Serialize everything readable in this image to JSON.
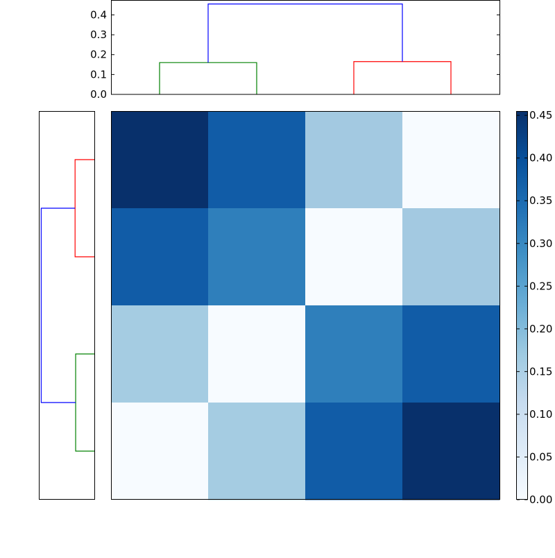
{
  "chart_data": [
    {
      "type": "dendrogram",
      "orientation": "top",
      "title": "",
      "ylabel": "",
      "ylim": [
        0.0,
        0.475
      ],
      "yticks": [
        "0.0",
        "0.1",
        "0.2",
        "0.3",
        "0.4"
      ],
      "leaves": 4,
      "links": [
        {
          "color": "#008000",
          "height": 0.16,
          "children": [
            "leaf0",
            "leaf1"
          ]
        },
        {
          "color": "#ff0000",
          "height": 0.165,
          "children": [
            "leaf2",
            "leaf3"
          ]
        },
        {
          "color": "#0000ff",
          "height": 0.455,
          "children": [
            "cluster_green",
            "cluster_red"
          ]
        }
      ]
    },
    {
      "type": "dendrogram",
      "orientation": "left",
      "leaves": 4,
      "links": [
        {
          "color": "#ff0000",
          "height": 0.165,
          "children": [
            "leaf0",
            "leaf1"
          ]
        },
        {
          "color": "#008000",
          "height": 0.16,
          "children": [
            "leaf2",
            "leaf3"
          ]
        },
        {
          "color": "#0000ff",
          "height": 0.455,
          "children": [
            "cluster_red",
            "cluster_green"
          ]
        }
      ]
    },
    {
      "type": "heatmap",
      "colormap": "Blues",
      "rows": 4,
      "cols": 4,
      "values": [
        [
          0.45,
          0.38,
          0.16,
          0.0
        ],
        [
          0.38,
          0.3,
          0.0,
          0.16
        ],
        [
          0.16,
          0.0,
          0.3,
          0.38
        ],
        [
          0.0,
          0.16,
          0.38,
          0.45
        ]
      ],
      "cell_colors": [
        [
          "#08306b",
          "#115ca7",
          "#a3c9e1",
          "#f7fbff"
        ],
        [
          "#115ca7",
          "#2f7fbb",
          "#f7fbff",
          "#a3c9e1"
        ],
        [
          "#a5cce2",
          "#f7fbff",
          "#2f7fbb",
          "#115ca7"
        ],
        [
          "#f7fbff",
          "#a5cce2",
          "#115ca7",
          "#08306b"
        ]
      ],
      "colorbar": {
        "range": [
          0.0,
          0.455
        ],
        "ticks": [
          "0.00",
          "0.05",
          "0.10",
          "0.15",
          "0.20",
          "0.25",
          "0.30",
          "0.35",
          "0.40",
          "0.45"
        ]
      }
    }
  ]
}
